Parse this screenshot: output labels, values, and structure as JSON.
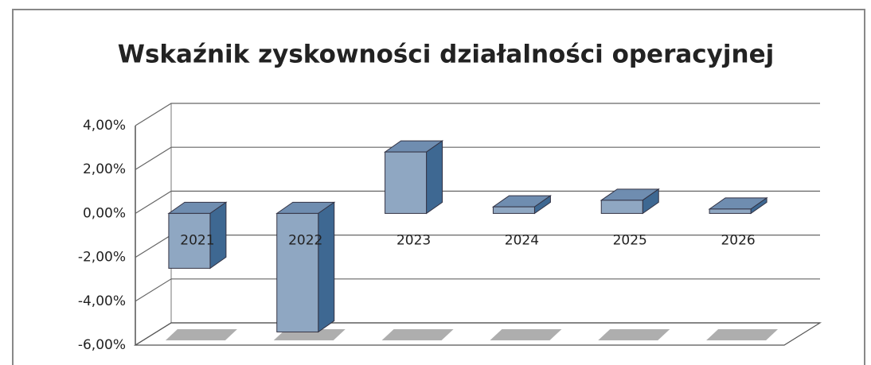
{
  "chart_data": {
    "type": "bar3d",
    "title": "Wskaźnik zyskowności działalności operacyjnej",
    "categories": [
      "2021",
      "2022",
      "2023",
      "2024",
      "2025",
      "2026"
    ],
    "values": [
      -2.5,
      -5.4,
      2.8,
      0.3,
      0.6,
      0.2
    ],
    "color": "#8fa7c2",
    "ylim": [
      -6,
      4
    ],
    "yticks": [
      {
        "value": -6,
        "label": "-6,00%"
      },
      {
        "value": -4,
        "label": "-4,00%"
      },
      {
        "value": -2,
        "label": "-2,00%"
      },
      {
        "value": 0,
        "label": "0,00%"
      },
      {
        "value": 2,
        "label": "2,00%"
      },
      {
        "value": 4,
        "label": "4,00%"
      }
    ],
    "grid": true
  }
}
